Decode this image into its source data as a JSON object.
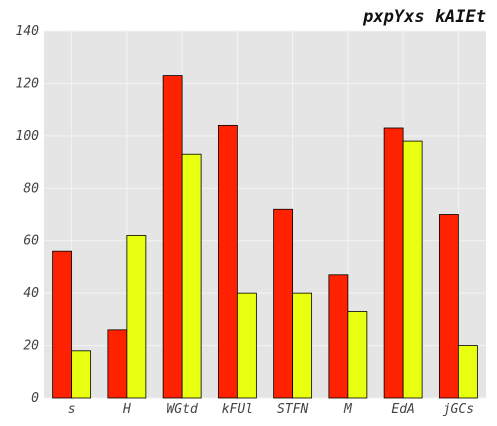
{
  "chart_data": {
    "type": "bar",
    "title": "pxpYxs kAIEt",
    "xlabel": "",
    "ylabel": "",
    "categories": [
      "s",
      "H",
      "WGtd",
      "kFUl",
      "STFN",
      "M",
      "EdA",
      "jGCs"
    ],
    "series": [
      {
        "color": "#ff2200",
        "values": [
          56,
          26,
          123,
          104,
          72,
          47,
          103,
          70
        ]
      },
      {
        "color": "#e8ff10",
        "values": [
          18,
          62,
          93,
          40,
          40,
          33,
          98,
          20
        ]
      }
    ],
    "ylim": [
      0,
      140
    ],
    "yticks": [
      "0",
      "20",
      "40",
      "60",
      "80",
      "100",
      "120",
      "140"
    ],
    "grid": true,
    "background_color": "#e5e5e5",
    "grid_color": "#f4f4f4"
  }
}
